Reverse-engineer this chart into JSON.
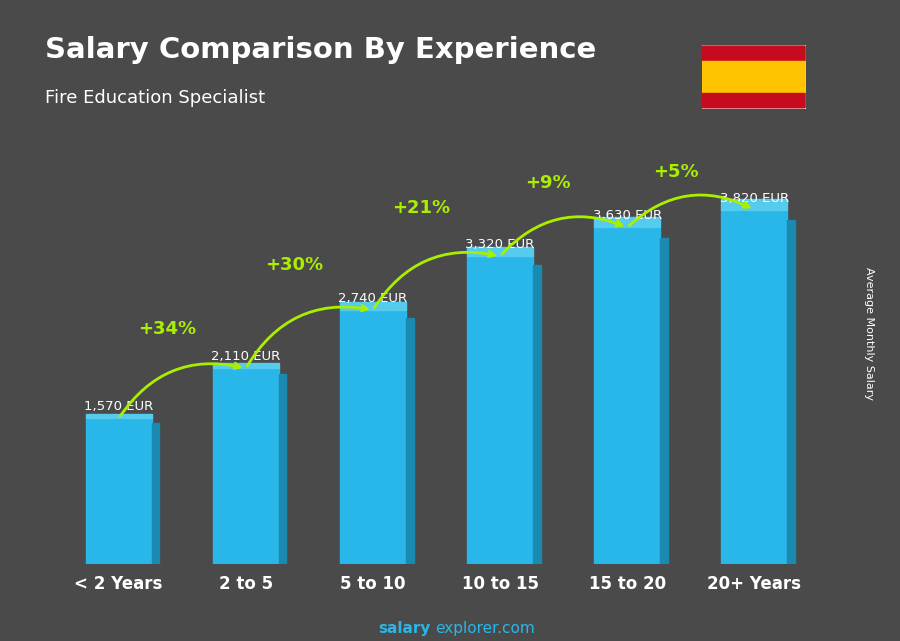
{
  "title": "Salary Comparison By Experience",
  "subtitle": "Fire Education Specialist",
  "ylabel": "Average Monthly Salary",
  "xlabel_labels": [
    "< 2 Years",
    "2 to 5",
    "5 to 10",
    "10 to 15",
    "15 to 20",
    "20+ Years"
  ],
  "values": [
    1570,
    2110,
    2740,
    3320,
    3630,
    3820
  ],
  "value_labels": [
    "1,570 EUR",
    "2,110 EUR",
    "2,740 EUR",
    "3,320 EUR",
    "3,630 EUR",
    "3,820 EUR"
  ],
  "pct_labels": [
    "+34%",
    "+30%",
    "+21%",
    "+9%",
    "+5%"
  ],
  "bar_color": "#29B6E8",
  "bar_color_dark": "#1A8AB0",
  "bar_color_top": "#55CCEE",
  "pct_color": "#AAEE00",
  "value_label_color": "#FFFFFF",
  "title_color": "#FFFFFF",
  "subtitle_color": "#FFFFFF",
  "bg_color": "#4a4a4a",
  "footer_salary_color": "#29B6E8",
  "footer_rest_color": "#29B6E8",
  "ylim": [
    0,
    4700
  ],
  "figsize": [
    9.0,
    6.41
  ]
}
